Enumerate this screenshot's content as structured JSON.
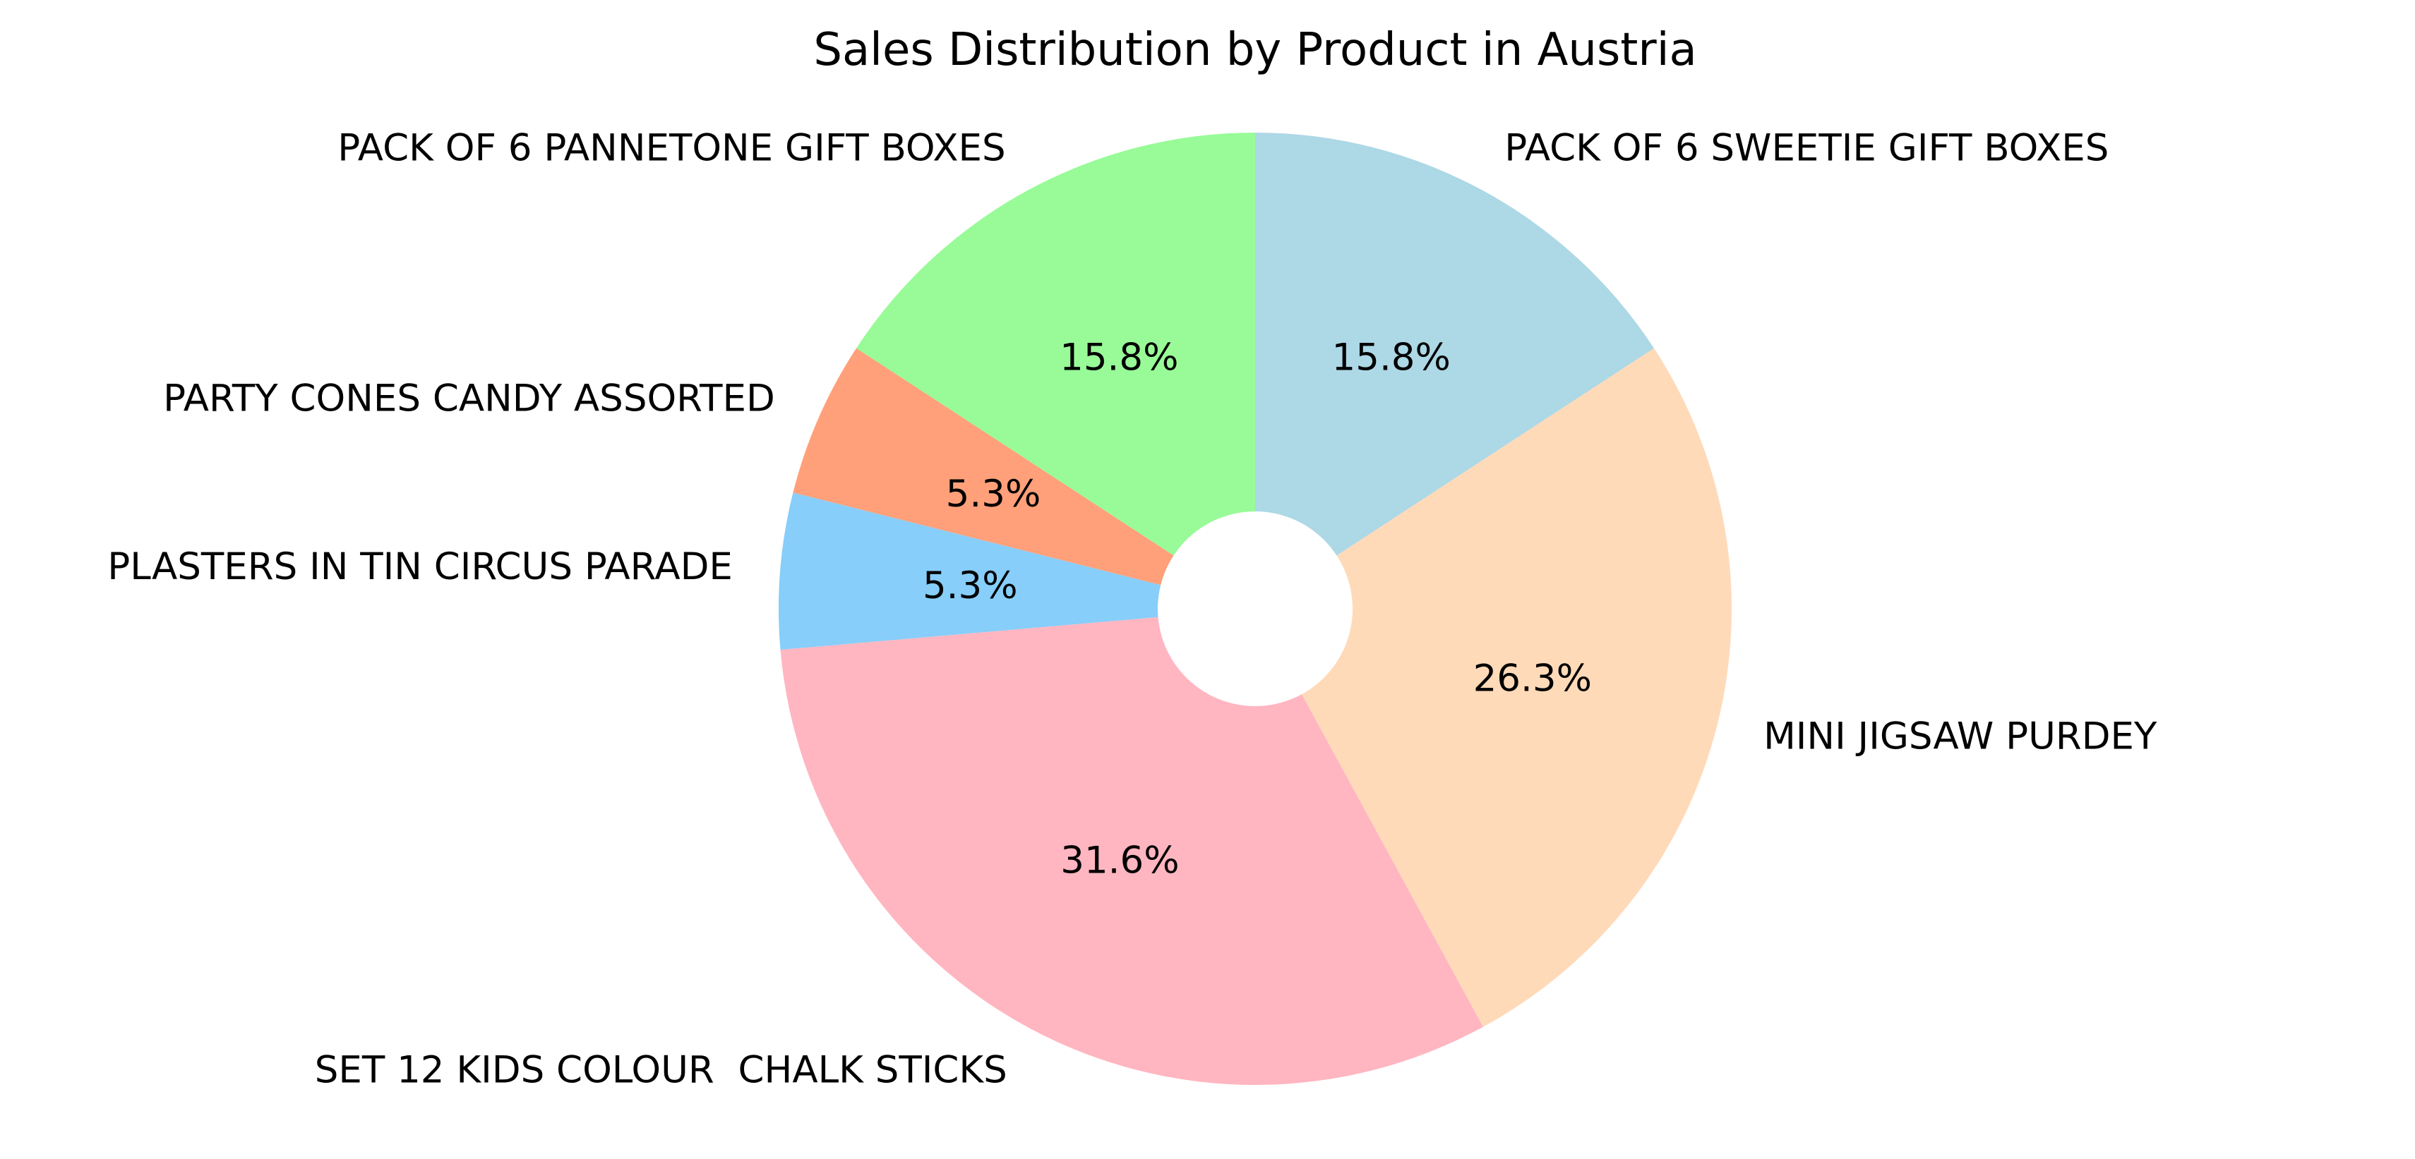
{
  "chart_data": {
    "type": "pie",
    "title": "Sales Distribution by Product in Austria",
    "donut": true,
    "start_angle_deg": 90,
    "direction": "counterclockwise",
    "slices": [
      {
        "label": "PACK OF 6 PANNETONE GIFT BOXES",
        "value": 15.8,
        "pct_label": "15.8%",
        "color": "#98FB98"
      },
      {
        "label": "PARTY CONES CANDY ASSORTED",
        "value": 5.3,
        "pct_label": "5.3%",
        "color": "#FFA07A"
      },
      {
        "label": "PLASTERS IN TIN CIRCUS PARADE",
        "value": 5.3,
        "pct_label": "5.3%",
        "color": "#87CEFA"
      },
      {
        "label": "SET 12 KIDS COLOUR  CHALK STICKS",
        "value": 31.6,
        "pct_label": "31.6%",
        "color": "#FFB6C1"
      },
      {
        "label": "MINI JIGSAW PURDEY",
        "value": 26.3,
        "pct_label": "26.3%",
        "color": "#FFDAB9"
      },
      {
        "label": "PACK OF 6 SWEETIE GIFT BOXES",
        "value": 15.8,
        "pct_label": "15.8%",
        "color": "#ADD8E6"
      }
    ]
  }
}
